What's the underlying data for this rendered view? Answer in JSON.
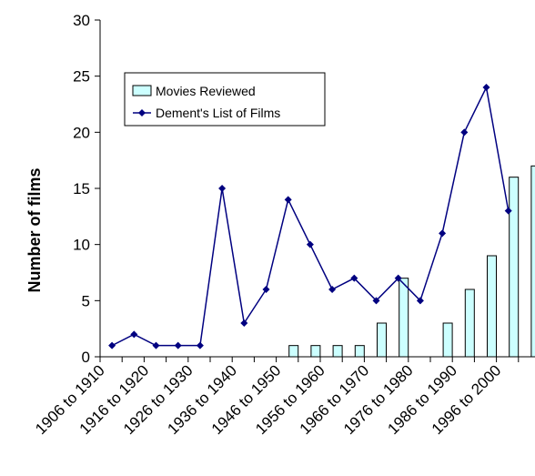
{
  "chart_data": {
    "type": "bar+line",
    "xlabel": "",
    "ylabel": "Number of films",
    "ylim": [
      0,
      30
    ],
    "yticks": [
      0,
      5,
      10,
      15,
      20,
      25,
      30
    ],
    "categories": [
      "1906 to 1910",
      "",
      "1916 to 1920",
      "",
      "1926 to 1930",
      "",
      "1936 to 1940",
      "",
      "1946 to 1950",
      "",
      "1956 to 1960",
      "",
      "1966 to 1970",
      "",
      "1976 to 1980",
      "",
      "1986 to 1990",
      "",
      "1996 to 2000",
      ""
    ],
    "legend_position": "top-left",
    "series": [
      {
        "name": "Movies Reviewed",
        "kind": "bar",
        "color": "#ccffff",
        "values": [
          0,
          0,
          0,
          0,
          0,
          0,
          0,
          0,
          1,
          1,
          1,
          1,
          3,
          7,
          0,
          3,
          6,
          9,
          16,
          17
        ]
      },
      {
        "name": "Dement's List of Films",
        "kind": "line",
        "color": "#000080",
        "values": [
          1,
          2,
          1,
          1,
          1,
          15,
          3,
          6,
          14,
          10,
          6,
          7,
          5,
          7,
          5,
          11,
          20,
          24,
          13,
          null
        ]
      }
    ]
  }
}
